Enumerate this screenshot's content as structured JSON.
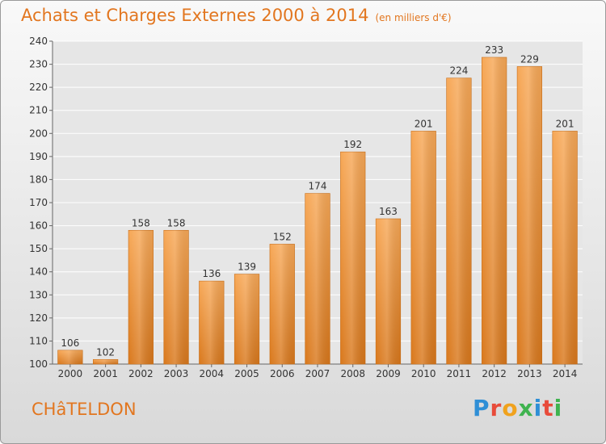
{
  "chart_data": {
    "type": "bar",
    "title": "Achats et Charges Externes 2000 à 2014",
    "subtitle": "(en milliers d'€)",
    "categories": [
      "2000",
      "2001",
      "2002",
      "2003",
      "2004",
      "2005",
      "2006",
      "2007",
      "2008",
      "2009",
      "2010",
      "2011",
      "2012",
      "2013",
      "2014"
    ],
    "values": [
      106,
      102,
      158,
      158,
      136,
      139,
      152,
      174,
      192,
      163,
      201,
      224,
      233,
      229,
      201
    ],
    "ylim": [
      100,
      240
    ],
    "yticks": [
      100,
      110,
      120,
      130,
      140,
      150,
      160,
      170,
      180,
      190,
      200,
      210,
      220,
      230,
      240
    ],
    "grid": true,
    "colors": {
      "bar_top": "#f7a857",
      "bar_bottom": "#d9781c",
      "accent": "#e2761f"
    }
  },
  "place_name": "CHâTELDON",
  "logo": {
    "text": "Proxiti",
    "letter_colors": [
      "#2f8fd6",
      "#e84b3a",
      "#f0a21d",
      "#3fb34f",
      "#2f8fd6",
      "#e84b3a",
      "#3fb34f"
    ]
  }
}
